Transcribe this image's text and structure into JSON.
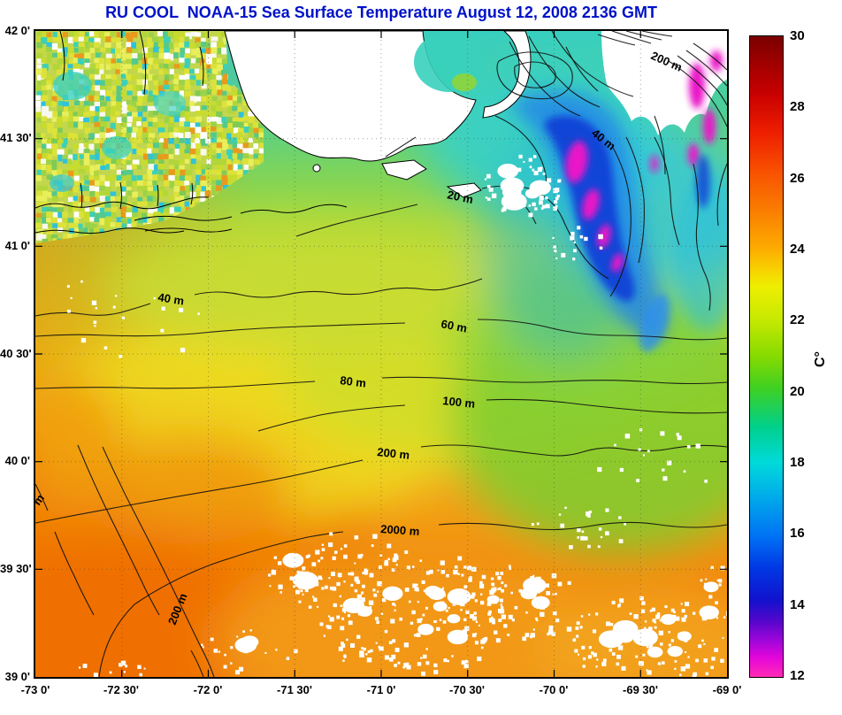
{
  "title": "RU COOL  NOAA-15 Sea Surface Temperature August 12, 2008 2136 GMT",
  "axes": {
    "y_ticks": [
      {
        "label": "42 0'"
      },
      {
        "label": "41 30'"
      },
      {
        "label": "41 0'"
      },
      {
        "label": "40 30'"
      },
      {
        "label": "40 0'"
      },
      {
        "label": "39 30'"
      },
      {
        "label": "39 0'"
      }
    ],
    "x_ticks": [
      {
        "label": "-73 0'"
      },
      {
        "label": "-72 30'"
      },
      {
        "label": "-72 0'"
      },
      {
        "label": "-71 30'"
      },
      {
        "label": "-71 0'"
      },
      {
        "label": "-70 30'"
      },
      {
        "label": "-70 0'"
      },
      {
        "label": "-69 30'"
      },
      {
        "label": "-69 0'"
      }
    ]
  },
  "colorbar": {
    "unit_label": "C°",
    "min": 12,
    "max": 30,
    "ticks": [
      {
        "label": "30"
      },
      {
        "label": "28"
      },
      {
        "label": "26"
      },
      {
        "label": "24"
      },
      {
        "label": "22"
      },
      {
        "label": "20"
      },
      {
        "label": "18"
      },
      {
        "label": "16"
      },
      {
        "label": "14"
      },
      {
        "label": "12"
      }
    ]
  },
  "map": {
    "contour_labels": [
      {
        "text": "200 m"
      },
      {
        "text": "40 m"
      },
      {
        "text": "20 m"
      },
      {
        "text": "40 m"
      },
      {
        "text": "60 m"
      },
      {
        "text": "80 m"
      },
      {
        "text": "100 m"
      },
      {
        "text": "200 m"
      },
      {
        "text": "2000 m"
      },
      {
        "text": "200 m"
      },
      {
        "text": "m"
      }
    ]
  },
  "chart_data": {
    "type": "heatmap",
    "title": "RU COOL  NOAA-15 Sea Surface Temperature August 12, 2008 2136 GMT",
    "x": {
      "tick_labels": [
        "-73 0'",
        "-72 30'",
        "-72 0'",
        "-71 30'",
        "-71 0'",
        "-70 30'",
        "-70 0'",
        "-69 30'",
        "-69 0'"
      ],
      "range_deg_lon": [
        -73,
        -69
      ]
    },
    "y": {
      "tick_labels": [
        "42 0'",
        "41 30'",
        "41 0'",
        "40 30'",
        "40 0'",
        "39 30'",
        "39 0'"
      ],
      "range_deg_lat": [
        39,
        42
      ]
    },
    "colorbar": {
      "unit": "C°",
      "range": [
        12,
        30
      ],
      "tick_values": [
        30,
        28,
        26,
        24,
        22,
        20,
        18,
        16,
        14,
        12
      ]
    },
    "bathymetry_contour_labels_m": [
      20,
      40,
      60,
      80,
      100,
      200,
      2000
    ],
    "sst_grid_estimate_degC": {
      "lon": [
        -73,
        -72.5,
        -72,
        -71.5,
        -71,
        -70.5,
        -70,
        -69.5,
        -69
      ],
      "lat": [
        42,
        41.5,
        41,
        40.5,
        40,
        39.5,
        39
      ],
      "values": [
        [
          null,
          null,
          null,
          null,
          null,
          19,
          18,
          15,
          16
        ],
        [
          22,
          22,
          null,
          null,
          null,
          20,
          20,
          13,
          17
        ],
        [
          23,
          23,
          22,
          21,
          21,
          21,
          18,
          14,
          19
        ],
        [
          23,
          24,
          23,
          22,
          21,
          21,
          20,
          18,
          20
        ],
        [
          25,
          25,
          24,
          23,
          22,
          21,
          21,
          21,
          21
        ],
        [
          26,
          26,
          25,
          24,
          23,
          22,
          22,
          22,
          23
        ],
        [
          26,
          27,
          26,
          25,
          24,
          23,
          23,
          24,
          24
        ]
      ],
      "note": "null = land or cloud (shown white in image)"
    }
  }
}
